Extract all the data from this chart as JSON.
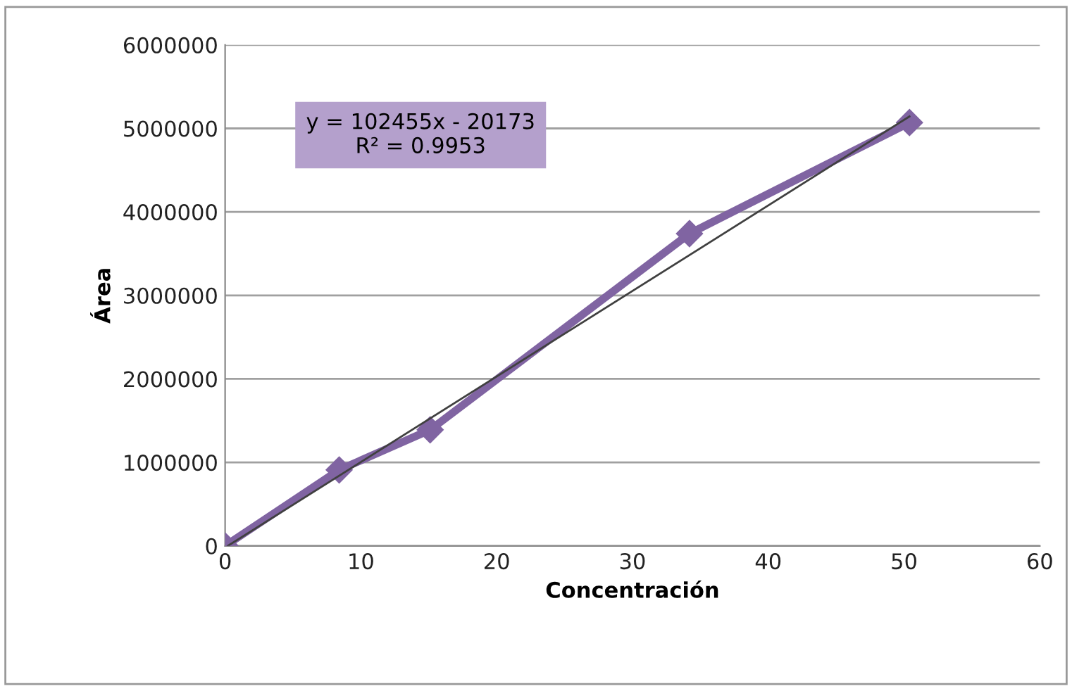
{
  "chart_data": {
    "type": "line",
    "xlabel": "Concentración",
    "ylabel": "Área",
    "xlim": [
      0,
      60
    ],
    "xticks": [
      0,
      10,
      20,
      30,
      40,
      50,
      60
    ],
    "ylim": [
      0,
      6000000
    ],
    "yticks": [
      0,
      1000000,
      2000000,
      3000000,
      4000000,
      5000000,
      6000000
    ],
    "grid": "y",
    "legend": false,
    "series": [
      {
        "color": "#8064a2",
        "x": [
          0,
          8.4,
          15.1,
          34.2,
          50.4
        ],
        "values": [
          0,
          910000,
          1390000,
          3740000,
          5070000
        ],
        "marker": "diamond",
        "line_style": "solid"
      },
      {
        "type": "line",
        "color": "#404040",
        "x": [
          0.2,
          50.4
        ],
        "values": [
          318,
          5143559
        ],
        "marker": "none",
        "line_style": "solid"
      }
    ],
    "annotations": [
      "y = 102455x - 20173\nR² = 0.9953"
    ]
  }
}
